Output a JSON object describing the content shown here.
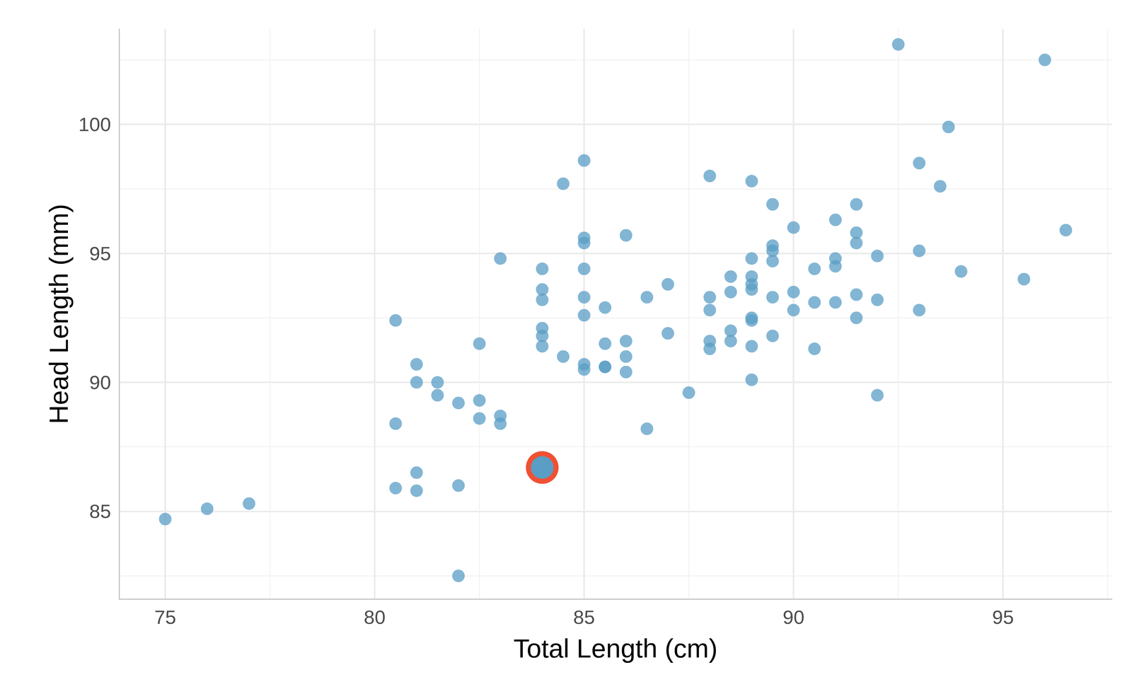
{
  "chart_data": {
    "type": "scatter",
    "x_label": "Total Length (cm)",
    "y_label": "Head Length (mm)",
    "xlim": [
      73.9,
      97.6
    ],
    "ylim": [
      81.6,
      103.7
    ],
    "xticks": [
      75,
      80,
      85,
      90,
      95
    ],
    "yticks": [
      85,
      90,
      95,
      100
    ],
    "grid": true,
    "series": [
      {
        "color": "#5A9EC5",
        "marker": "circle",
        "x": [
          75,
          76,
          77,
          80.5,
          80.5,
          80.5,
          81,
          81,
          81,
          81,
          81.5,
          81.5,
          82,
          82,
          82,
          82.5,
          82.5,
          82.5,
          83,
          83,
          83,
          84,
          84,
          84,
          84,
          84,
          84,
          84.5,
          84.5,
          85,
          85,
          85,
          85,
          85,
          85,
          85,
          85,
          85.5,
          85.5,
          85.5,
          85.5,
          86,
          86,
          86,
          86,
          86.5,
          86.5,
          87,
          87,
          87.5,
          88,
          88,
          88,
          88,
          88,
          88.5,
          88.5,
          88.5,
          88.5,
          89,
          89,
          89,
          89,
          89,
          89,
          89,
          89,
          89,
          89.5,
          89.5,
          89.5,
          89.5,
          89.5,
          89.5,
          90,
          90,
          90,
          90.5,
          90.5,
          90.5,
          91,
          91,
          91,
          91,
          91.5,
          91.5,
          91.5,
          91.5,
          91.5,
          92,
          92,
          92,
          92.5,
          93,
          93,
          93,
          93.5,
          93.7,
          94,
          95.5,
          96,
          96.5
        ],
        "y": [
          84.7,
          85.1,
          85.3,
          92.4,
          88.4,
          85.9,
          90.7,
          90.0,
          86.5,
          85.8,
          90.0,
          89.5,
          89.2,
          86.0,
          82.5,
          91.5,
          89.3,
          88.6,
          94.8,
          88.7,
          88.4,
          94.4,
          93.6,
          93.2,
          92.1,
          91.8,
          91.4,
          97.7,
          91.0,
          98.6,
          95.6,
          95.4,
          94.4,
          93.3,
          92.6,
          90.7,
          90.5,
          92.9,
          91.5,
          90.6,
          90.6,
          95.7,
          91.6,
          91.0,
          90.4,
          93.3,
          88.2,
          93.8,
          91.9,
          89.6,
          98.0,
          93.3,
          92.8,
          91.6,
          91.3,
          94.1,
          93.5,
          92.0,
          91.6,
          97.8,
          94.8,
          94.1,
          93.8,
          93.6,
          92.5,
          92.4,
          91.4,
          90.1,
          96.9,
          95.3,
          95.1,
          94.7,
          93.3,
          91.8,
          96.0,
          93.5,
          92.8,
          94.4,
          93.1,
          91.3,
          96.3,
          94.8,
          94.5,
          93.1,
          96.9,
          95.8,
          95.4,
          93.4,
          92.5,
          94.9,
          93.2,
          89.5,
          103.1,
          98.5,
          95.1,
          92.8,
          97.6,
          99.9,
          94.3,
          94.0,
          102.5,
          95.9
        ]
      },
      {
        "color": "#F05133",
        "marker": "ringed",
        "x": [
          84
        ],
        "y": [
          86.7
        ]
      }
    ]
  }
}
